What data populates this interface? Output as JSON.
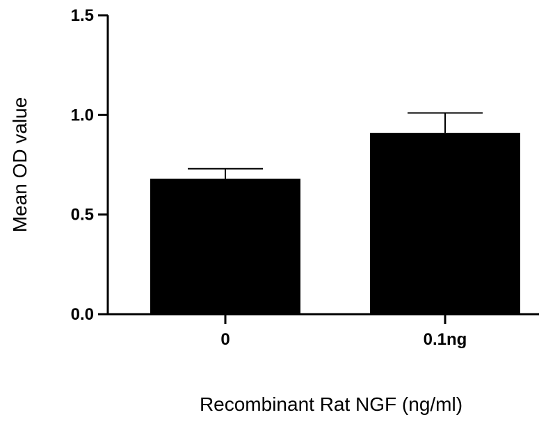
{
  "chart_data": {
    "type": "bar",
    "categories": [
      "0",
      "0.1ng"
    ],
    "values": [
      0.68,
      0.91
    ],
    "error_upper": [
      0.73,
      1.01
    ],
    "title": "",
    "xlabel": "Recombinant Rat NGF (ng/ml)",
    "ylabel": "Mean OD value",
    "ylim": [
      0,
      1.5
    ],
    "yticks": [
      "0.0",
      "0.5",
      "1.0",
      "1.5"
    ],
    "bar_color": "#000000",
    "grid": false,
    "legend": "none"
  }
}
